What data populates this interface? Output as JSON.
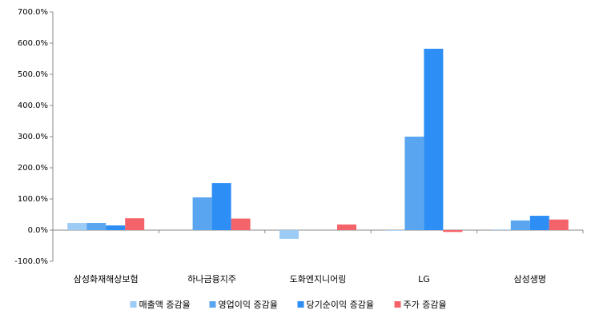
{
  "chart_data": {
    "type": "bar",
    "categories": [
      "삼성화재해상보험",
      "하나금융지주",
      "도화엔지니어링",
      "LG",
      "삼성생명"
    ],
    "series": [
      {
        "name": "매출액 증감율",
        "color": "#9ccbf5",
        "values": [
          23,
          0,
          -28,
          -2,
          2
        ]
      },
      {
        "name": "영업이익 증감율",
        "color": "#5aa5f0",
        "values": [
          23,
          105,
          0,
          300,
          31
        ]
      },
      {
        "name": "당기순이익 증감율",
        "color": "#2d8ef5",
        "values": [
          15,
          151,
          0,
          582,
          46
        ]
      },
      {
        "name": "주가 증감율",
        "color": "#f5636a",
        "values": [
          38,
          37,
          18,
          -6,
          34
        ]
      }
    ],
    "ylim": [
      -100,
      700
    ],
    "yticks": [
      {
        "value": -100,
        "label": "-100.0%"
      },
      {
        "value": 0,
        "label": "0.0%"
      },
      {
        "value": 100,
        "label": "100.0%"
      },
      {
        "value": 200,
        "label": "200.0%"
      },
      {
        "value": 300,
        "label": "300.0%"
      },
      {
        "value": 400,
        "label": "400.0%"
      },
      {
        "value": 500,
        "label": "500.0%"
      },
      {
        "value": 600,
        "label": "600.0%"
      },
      {
        "value": 700,
        "label": "700.0%"
      }
    ],
    "legend": "bottom"
  }
}
